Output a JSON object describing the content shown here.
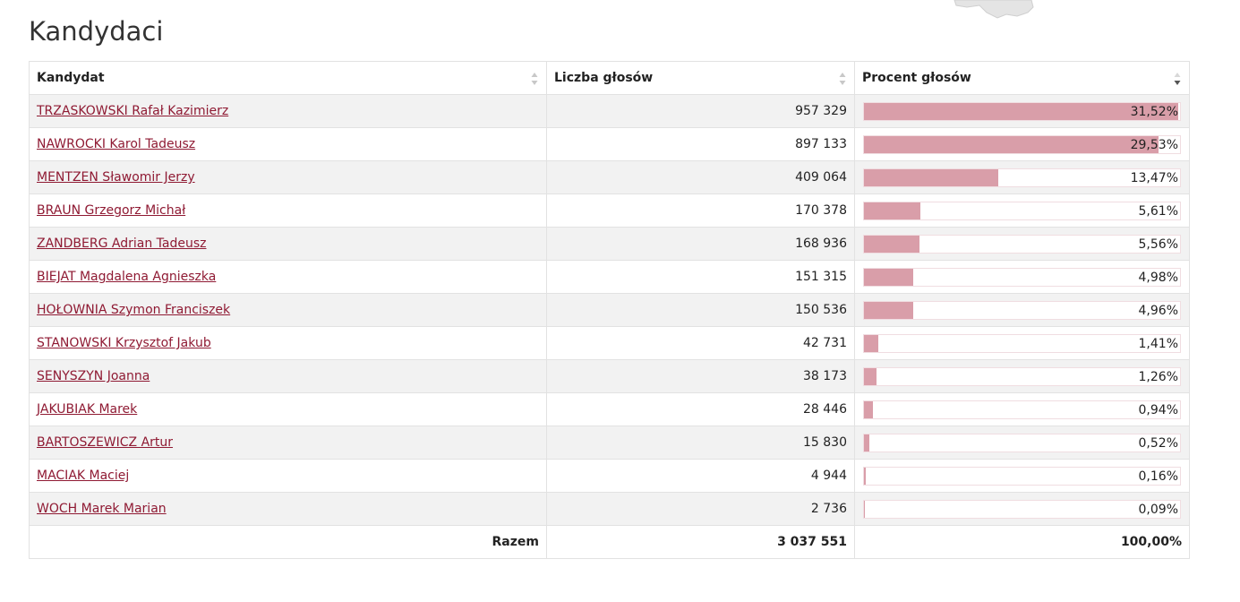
{
  "page": {
    "title": "Kandydaci"
  },
  "table": {
    "headers": {
      "candidate": "Kandydat",
      "votes": "Liczba głosów",
      "percent": "Procent głosów"
    },
    "rows": [
      {
        "name": "TRZASKOWSKI Rafał Kazimierz",
        "votes": "957 329",
        "percent": "31,52%",
        "share": 31.52
      },
      {
        "name": "NAWROCKI Karol Tadeusz",
        "votes": "897 133",
        "percent": "29,53%",
        "share": 29.53
      },
      {
        "name": "MENTZEN Sławomir Jerzy",
        "votes": "409 064",
        "percent": "13,47%",
        "share": 13.47
      },
      {
        "name": "BRAUN Grzegorz Michał",
        "votes": "170 378",
        "percent": "5,61%",
        "share": 5.61
      },
      {
        "name": "ZANDBERG Adrian Tadeusz",
        "votes": "168 936",
        "percent": "5,56%",
        "share": 5.56
      },
      {
        "name": "BIEJAT Magdalena Agnieszka",
        "votes": "151 315",
        "percent": "4,98%",
        "share": 4.98
      },
      {
        "name": "HOŁOWNIA Szymon Franciszek",
        "votes": "150 536",
        "percent": "4,96%",
        "share": 4.96
      },
      {
        "name": "STANOWSKI Krzysztof Jakub",
        "votes": "42 731",
        "percent": "1,41%",
        "share": 1.41
      },
      {
        "name": "SENYSZYN Joanna",
        "votes": "38 173",
        "percent": "1,26%",
        "share": 1.26
      },
      {
        "name": "JAKUBIAK Marek",
        "votes": "28 446",
        "percent": "0,94%",
        "share": 0.94
      },
      {
        "name": "BARTOSZEWICZ Artur",
        "votes": "15 830",
        "percent": "0,52%",
        "share": 0.52
      },
      {
        "name": "MACIAK Maciej",
        "votes": "4 944",
        "percent": "0,16%",
        "share": 0.16
      },
      {
        "name": "WOCH Marek Marian",
        "votes": "2 736",
        "percent": "0,09%",
        "share": 0.09
      }
    ],
    "totals": {
      "label": "Razem",
      "votes": "3 037 551",
      "percent": "100,00%"
    }
  },
  "colors": {
    "link": "#8f1a33",
    "bar_fill": "#d99ea9",
    "row_stripe": "#f2f2f2"
  },
  "icons": {
    "sort_unsorted": "sort-arrows-icon",
    "sort_desc": "sort-desc-icon"
  }
}
